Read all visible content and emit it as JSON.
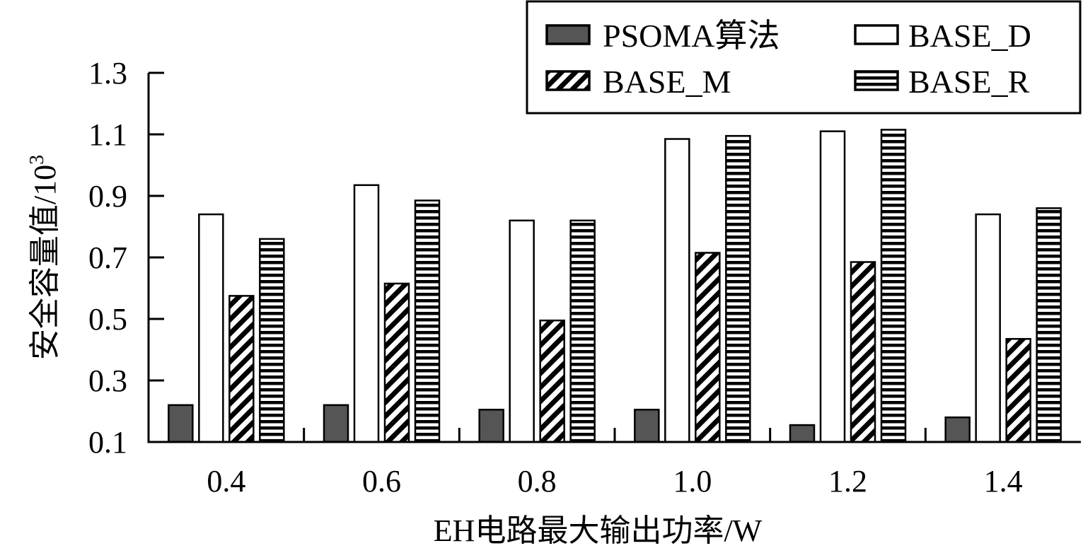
{
  "chart_data": {
    "type": "bar",
    "xlabel": "EH电路最大输出功率/W",
    "ylabel": "安全容量值/10",
    "ylabel_superscript": "3",
    "categories": [
      "0.4",
      "0.6",
      "0.8",
      "1.0",
      "1.2",
      "1.4"
    ],
    "yticks": [
      "0.1",
      "0.3",
      "0.5",
      "0.7",
      "0.9",
      "1.1",
      "1.3"
    ],
    "ylim": [
      0.1,
      1.3
    ],
    "grid": false,
    "legend_position": "top-right",
    "series": [
      {
        "name": "PSOMA算法",
        "pattern": "solid-dark",
        "color": "#555555",
        "values": [
          0.22,
          0.22,
          0.205,
          0.205,
          0.155,
          0.18
        ]
      },
      {
        "name": "BASE_D",
        "pattern": "white",
        "color": "#ffffff",
        "values": [
          0.84,
          0.935,
          0.82,
          1.085,
          1.11,
          0.84
        ]
      },
      {
        "name": "BASE_M",
        "pattern": "diagonal-stripes",
        "color": "#000000",
        "values": [
          0.575,
          0.615,
          0.495,
          0.715,
          0.685,
          0.435
        ]
      },
      {
        "name": "BASE_R",
        "pattern": "horizontal-stripes",
        "color": "#000000",
        "values": [
          0.76,
          0.885,
          0.82,
          1.095,
          1.115,
          0.86
        ]
      }
    ]
  }
}
